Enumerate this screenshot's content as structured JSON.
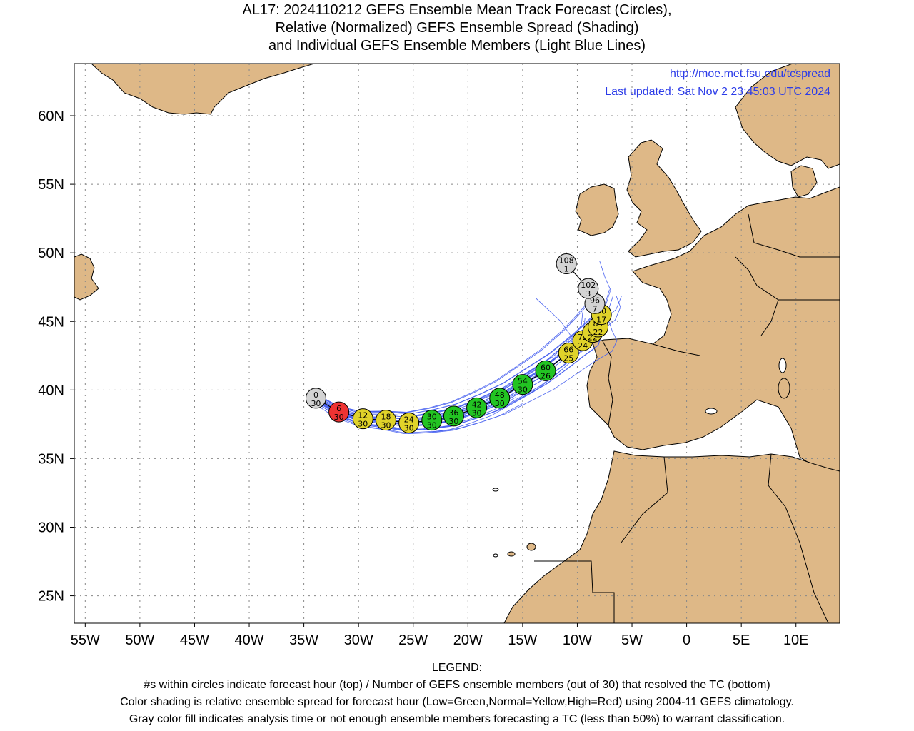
{
  "title": {
    "line1": "AL17: 2024110212 GEFS Ensemble Mean Track Forecast (Circles),",
    "line2": "Relative (Normalized) GEFS Ensemble Spread (Shading)",
    "line3": "and Individual GEFS Ensemble Members (Light Blue Lines)"
  },
  "credit": {
    "url": "http://moe.met.fsu.edu/tcspread",
    "updated": "Last updated: Sat Nov 2 23:45:03 UTC 2024"
  },
  "axes": {
    "lat_labels": [
      "25N",
      "30N",
      "35N",
      "40N",
      "45N",
      "50N",
      "55N",
      "60N"
    ],
    "lat_values": [
      25,
      30,
      35,
      40,
      45,
      50,
      55,
      60
    ],
    "lon_labels": [
      "55W",
      "50W",
      "45W",
      "40W",
      "35W",
      "30W",
      "25W",
      "20W",
      "15W",
      "10W",
      "5W",
      "0",
      "5E",
      "10E"
    ],
    "lon_values": [
      -55,
      -50,
      -45,
      -40,
      -35,
      -30,
      -25,
      -20,
      -15,
      -10,
      -5,
      0,
      5,
      10
    ],
    "lon_range": [
      -56,
      14
    ],
    "lat_range": [
      23,
      63.8
    ]
  },
  "colors": {
    "land": "#deb887",
    "ocean": "#ffffff",
    "member_track": "#4a63f0",
    "mean_track": "#000000",
    "low_spread": "#22c422",
    "normal_spread": "#e0d32a",
    "high_spread": "#ee3333",
    "gray": "#d3d3d3",
    "credit": "#2c3ce8"
  },
  "track_points": [
    {
      "hour": "0",
      "members": "30",
      "lon": -33.9,
      "lat": 39.4,
      "class": "gray"
    },
    {
      "hour": "6",
      "members": "30",
      "lon": -31.8,
      "lat": 38.4,
      "class": "high"
    },
    {
      "hour": "12",
      "members": "30",
      "lon": -29.6,
      "lat": 37.9,
      "class": "normal"
    },
    {
      "hour": "18",
      "members": "30",
      "lon": -27.5,
      "lat": 37.8,
      "class": "normal"
    },
    {
      "hour": "24",
      "members": "30",
      "lon": -25.4,
      "lat": 37.6,
      "class": "normal"
    },
    {
      "hour": "30",
      "members": "30",
      "lon": -23.3,
      "lat": 37.8,
      "class": "low"
    },
    {
      "hour": "36",
      "members": "30",
      "lon": -21.3,
      "lat": 38.1,
      "class": "low"
    },
    {
      "hour": "42",
      "members": "30",
      "lon": -19.2,
      "lat": 38.7,
      "class": "low"
    },
    {
      "hour": "48",
      "members": "30",
      "lon": -17.1,
      "lat": 39.4,
      "class": "low"
    },
    {
      "hour": "54",
      "members": "30",
      "lon": -15.0,
      "lat": 40.4,
      "class": "low"
    },
    {
      "hour": "60",
      "members": "26",
      "lon": -12.9,
      "lat": 41.4,
      "class": "low"
    },
    {
      "hour": "66",
      "members": "25",
      "lon": -10.8,
      "lat": 42.7,
      "class": "normal"
    },
    {
      "hour": "72",
      "members": "24",
      "lon": -9.5,
      "lat": 43.6,
      "class": "normal"
    },
    {
      "hour": "78",
      "members": "22",
      "lon": -8.6,
      "lat": 44.2,
      "class": "normal"
    },
    {
      "hour": "84",
      "members": "22",
      "lon": -8.1,
      "lat": 44.6,
      "class": "normal"
    },
    {
      "hour": "90",
      "members": "17",
      "lon": -7.8,
      "lat": 45.5,
      "class": "normal"
    },
    {
      "hour": "96",
      "members": "7",
      "lon": -8.4,
      "lat": 46.3,
      "class": "gray"
    },
    {
      "hour": "102",
      "members": "3",
      "lon": -9.0,
      "lat": 47.4,
      "class": "gray"
    },
    {
      "hour": "108",
      "members": "1",
      "lon": -11.0,
      "lat": 49.2,
      "class": "gray"
    }
  ],
  "legend": {
    "heading": "LEGEND:",
    "line1": "#s within circles indicate forecast hour (top) / Number of GEFS ensemble members (out of 30) that resolved the TC (bottom)",
    "line2": "Color shading is relative ensemble spread for forecast hour (Low=Green,Normal=Yellow,High=Red) using 2004-11 GEFS climatology.",
    "line3": "Gray color fill indicates analysis time or not enough ensemble members forecasting a TC (less than 50%) to warrant classification."
  }
}
